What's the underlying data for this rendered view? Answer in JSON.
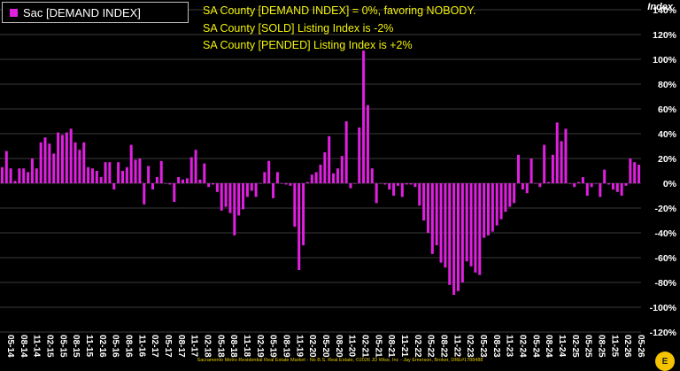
{
  "legend": {
    "label": "Sac [DEMAND INDEX]"
  },
  "notes": [
    "SA County [DEMAND INDEX] = 0%, favoring NOBODY.",
    "SA County [SOLD] Listing Index is -2%",
    "SA County [PENDED] Listing Index is +2%"
  ],
  "footer": "Sacramento Metro Residential Real Estate Market - No B.S. Real Estate, ©2026 JD Wise, Inc - Jay Emerson, Broker, DRE#1788488",
  "colors": {
    "bar": "#e020e0",
    "background": "#000000",
    "grid": "#3a3a3a",
    "notes": "#f2f20a",
    "ticks": "#ffffff"
  },
  "chart_data": {
    "type": "bar",
    "ylabel": "Index",
    "ylim": [
      -120,
      140
    ],
    "ytick_step": 20,
    "y_ticks": [
      "140%",
      "120%",
      "100%",
      "80%",
      "60%",
      "40%",
      "20%",
      "0%",
      "-20%",
      "-40%",
      "-60%",
      "-80%",
      "-100%",
      "-120%"
    ],
    "grid": true,
    "legend_position": "top-left",
    "x_tick_labels": [
      "05-14",
      "08-14",
      "11-14",
      "02-15",
      "05-15",
      "08-15",
      "11-15",
      "02-16",
      "05-16",
      "08-16",
      "11-16",
      "02-17",
      "05-17",
      "08-17",
      "11-17",
      "02-18",
      "05-18",
      "08-18",
      "11-18",
      "02-19",
      "05-19",
      "08-19",
      "11-19",
      "02-20",
      "05-20",
      "08-20",
      "11-20",
      "02-21",
      "05-21",
      "08-21",
      "11-21",
      "02-22",
      "05-22",
      "08-22",
      "11-22",
      "02-23",
      "05-23",
      "08-23",
      "11-23",
      "02-24",
      "05-24",
      "08-24",
      "11-24",
      "02-25",
      "05-25",
      "08-25",
      "11-25",
      "02-26",
      "05-26"
    ],
    "series": [
      {
        "name": "Sac [DEMAND INDEX]",
        "values": [
          13,
          26,
          12,
          2,
          12,
          12,
          9,
          20,
          12,
          33,
          37,
          32,
          24,
          41,
          39,
          41,
          44,
          33,
          27,
          33,
          13,
          12,
          10,
          5,
          17,
          17,
          -5,
          17,
          10,
          13,
          31,
          19,
          20,
          -17,
          14,
          -5,
          5,
          18,
          0,
          -1,
          -15,
          5,
          3,
          4,
          21,
          27,
          3,
          16,
          -3,
          -1,
          -7,
          -22,
          -19,
          -24,
          -42,
          -26,
          -21,
          -11,
          -6,
          -11,
          0,
          9,
          18,
          -12,
          9,
          0,
          -1,
          -2,
          -35,
          -70,
          -50,
          1,
          7,
          9,
          15,
          25,
          38,
          8,
          12,
          22,
          50,
          -4,
          0,
          45,
          107,
          63,
          12,
          -16,
          0,
          -1,
          -5,
          -10,
          -2,
          -11,
          -1,
          -1,
          -3,
          -18,
          -30,
          -40,
          -57,
          -50,
          -64,
          -68,
          -82,
          -90,
          -87,
          -80,
          -63,
          -67,
          -72,
          -74,
          -44,
          -42,
          -39,
          -34,
          -29,
          -23,
          -19,
          -16,
          23,
          -5,
          -8,
          20,
          0,
          -3,
          31,
          1,
          23,
          49,
          34,
          44,
          0,
          -3,
          1,
          5,
          -10,
          -3,
          0,
          -11,
          11,
          -1,
          -5,
          -7,
          -10,
          -2,
          20,
          17,
          15
        ]
      }
    ]
  }
}
